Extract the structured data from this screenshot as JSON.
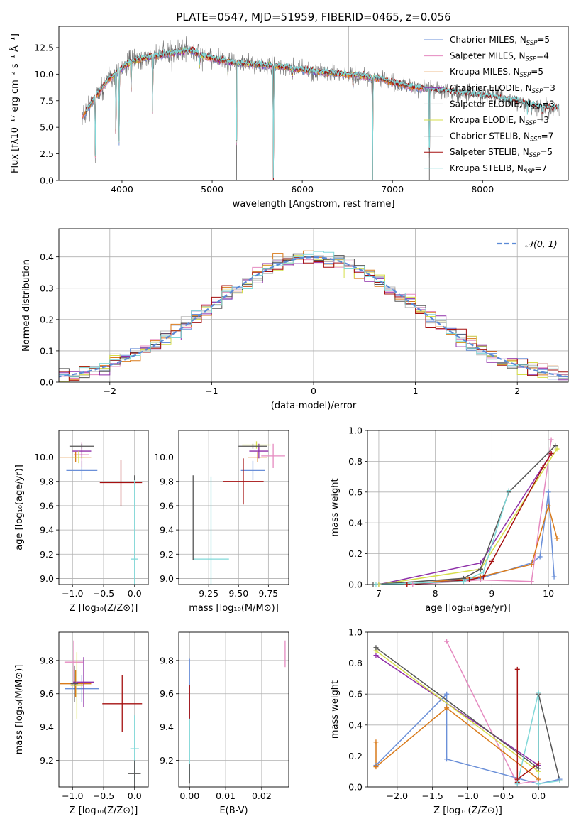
{
  "figure": {
    "title": "PLATE=0547, MJD=51959, FIBERID=0465, z=0.056"
  },
  "colors": {
    "chabrier_miles": "#6a8fd8",
    "salpeter_miles": "#e58ac0",
    "kroupa_miles": "#d97a1a",
    "chabrier_elodie": "#8e2fa8",
    "salpeter_elodie": "#b8b8b8",
    "kroupa_elodie": "#d6de4a",
    "chabrier_stelib": "#555555",
    "salpeter_stelib": "#a51010",
    "kroupa_stelib": "#80d8d8",
    "data": "#707070",
    "grid": "#b0b0b0",
    "normal": "#5b8ad6"
  },
  "chart_data": [
    {
      "id": "spectrum",
      "type": "line",
      "xlabel": "wavelength [Angstrom, rest frame]",
      "ylabel": "Flux [fλ10⁻¹⁷ erg cm⁻² s⁻¹ Å⁻¹]",
      "xlim": [
        3300,
        8950
      ],
      "ylim": [
        0,
        14.5
      ],
      "xticks": [
        "4000",
        "5000",
        "6000",
        "7000",
        "8000"
      ],
      "yticks": [
        "0.0",
        "2.5",
        "5.0",
        "7.5",
        "10.0",
        "12.5"
      ],
      "legend_position": "top-right",
      "legend": [
        {
          "model": "Chabrier MILES",
          "nssp": "5",
          "color": "#6a8fd8"
        },
        {
          "model": "Salpeter MILES",
          "nssp": "4",
          "color": "#e58ac0"
        },
        {
          "model": "Kroupa MILES",
          "nssp": "5",
          "color": "#d97a1a"
        },
        {
          "model": "Chabrier ELODIE",
          "nssp": "3",
          "color": "#8e2fa8"
        },
        {
          "model": "Salpeter ELODIE",
          "nssp": "3",
          "color": "#b8b8b8"
        },
        {
          "model": "Kroupa ELODIE",
          "nssp": "3",
          "color": "#d6de4a"
        },
        {
          "model": "Chabrier STELIB",
          "nssp": "7",
          "color": "#555555"
        },
        {
          "model": "Salpeter STELIB",
          "nssp": "5",
          "color": "#a51010"
        },
        {
          "model": "Kroupa STELIB",
          "nssp": "7",
          "color": "#80d8d8"
        }
      ],
      "continuum": [
        [
          3560,
          6.0
        ],
        [
          3700,
          7.8
        ],
        [
          3850,
          9.5
        ],
        [
          3950,
          10.2
        ],
        [
          4100,
          11.2
        ],
        [
          4300,
          11.6
        ],
        [
          4500,
          11.9
        ],
        [
          4750,
          12.3
        ],
        [
          4900,
          11.7
        ],
        [
          5100,
          11.3
        ],
        [
          5300,
          11.0
        ],
        [
          5500,
          10.9
        ],
        [
          5800,
          10.7
        ],
        [
          6000,
          10.4
        ],
        [
          6300,
          10.1
        ],
        [
          6600,
          9.9
        ],
        [
          6900,
          9.5
        ],
        [
          7100,
          9.0
        ],
        [
          7300,
          8.7
        ],
        [
          7500,
          8.5
        ],
        [
          7800,
          8.2
        ],
        [
          8100,
          7.9
        ],
        [
          8400,
          7.4
        ],
        [
          8700,
          6.8
        ]
      ],
      "absorption_dips": [
        [
          3705,
          1.2
        ],
        [
          3933,
          3.5
        ],
        [
          3968,
          3.6
        ],
        [
          4101,
          8.0
        ],
        [
          4340,
          6.4
        ],
        [
          4861,
          10.6
        ],
        [
          5175,
          9.8
        ],
        [
          5270,
          0.0
        ],
        [
          5680,
          0.0
        ],
        [
          5890,
          9.6
        ],
        [
          6563,
          8.7
        ],
        [
          6780,
          0.0
        ],
        [
          7410,
          0.0
        ],
        [
          8498,
          6.0
        ],
        [
          8542,
          5.8
        ],
        [
          8662,
          6.1
        ]
      ],
      "data_spikes": [
        [
          5270,
          0.0
        ],
        [
          5680,
          0.0
        ],
        [
          6510,
          14.5
        ],
        [
          6780,
          0.0
        ],
        [
          7410,
          0.0
        ]
      ]
    },
    {
      "id": "residuals",
      "type": "area",
      "xlabel": "(data-model)/error",
      "ylabel": "Normed distribution",
      "xlim": [
        -2.5,
        2.5
      ],
      "ylim": [
        0,
        0.49
      ],
      "xticks": [
        "−2",
        "−1",
        "0",
        "1",
        "2"
      ],
      "yticks": [
        "0.0",
        "0.1",
        "0.2",
        "0.3",
        "0.4"
      ],
      "legend": [
        {
          "label": "𝒩(0, 1)",
          "color": "#5b8ad6"
        }
      ],
      "bin_width": 0.1,
      "gaussian": {
        "mean": 0,
        "sigma": 1
      }
    },
    {
      "id": "age_vs_z",
      "type": "scatter",
      "xlabel": "Z [log₁₀(Z/Z⊙)]",
      "ylabel": "age  [log₁₀(age/yr)]",
      "xlim": [
        -1.22,
        0.22
      ],
      "ylim": [
        8.95,
        10.22
      ],
      "xticks": [
        "−1.0",
        "−0.5",
        "0.0"
      ],
      "yticks": [
        "9.0",
        "9.2",
        "9.4",
        "9.6",
        "9.8",
        "10.0"
      ],
      "crosses": [
        {
          "model": "Chabrier MILES",
          "x": -0.85,
          "xerr": 0.25,
          "y": 9.89,
          "yerr": 0.08
        },
        {
          "model": "Salpeter MILES",
          "x": -0.85,
          "xerr": 0.12,
          "y": 10.02,
          "yerr": 0.1
        },
        {
          "model": "Kroupa MILES",
          "x": -0.95,
          "xerr": 0.25,
          "y": 10.0,
          "yerr": 0.04
        },
        {
          "model": "Chabrier ELODIE",
          "x": -0.85,
          "xerr": 0.15,
          "y": 10.05,
          "yerr": 0.06
        },
        {
          "model": "Kroupa ELODIE",
          "x": -0.9,
          "xerr": 0.1,
          "y": 10.0,
          "yerr": 0.05
        },
        {
          "model": "Chabrier STELIB",
          "x": -0.85,
          "xerr": 0.2,
          "y": 10.09,
          "yerr": 0.02
        },
        {
          "model": "Salpeter STELIB",
          "x": -0.22,
          "xerr": 0.34,
          "y": 9.79,
          "yerr": 0.19
        },
        {
          "model": "Kroupa STELIB",
          "x": 0.0,
          "xerr": 0.06,
          "y": 9.16,
          "yerr": 0.68
        },
        {
          "model": "Chabrier STELIB",
          "x": 0.0,
          "xerr": 0.0,
          "y": 9.83,
          "yerr": 0.02
        }
      ]
    },
    {
      "id": "age_vs_mass",
      "type": "scatter",
      "xlabel": "mass [log₁₀(M/M⊙)]",
      "ylabel": "",
      "xlim": [
        9.0,
        9.92
      ],
      "ylim": [
        8.95,
        10.22
      ],
      "xticks": [
        "9.25",
        "9.50",
        "9.75"
      ],
      "yticks": [
        "9.0",
        "9.2",
        "9.4",
        "9.6",
        "9.8",
        "10.0"
      ],
      "crosses": [
        {
          "model": "Chabrier MILES",
          "x": 9.62,
          "xerr": 0.1,
          "y": 9.89,
          "yerr": 0.08
        },
        {
          "model": "Salpeter MILES",
          "x": 9.79,
          "xerr": 0.1,
          "y": 10.01,
          "yerr": 0.1
        },
        {
          "model": "Kroupa MILES",
          "x": 9.66,
          "xerr": 0.08,
          "y": 10.0,
          "yerr": 0.04
        },
        {
          "model": "Chabrier ELODIE",
          "x": 9.67,
          "xerr": 0.08,
          "y": 10.05,
          "yerr": 0.06
        },
        {
          "model": "Kroupa ELODIE",
          "x": 9.65,
          "xerr": 0.12,
          "y": 10.1,
          "yerr": 0.03
        },
        {
          "model": "Chabrier STELIB",
          "x": 9.62,
          "xerr": 0.12,
          "y": 10.09,
          "yerr": 0.02
        },
        {
          "model": "Salpeter STELIB",
          "x": 9.54,
          "xerr": 0.17,
          "y": 9.8,
          "yerr": 0.19
        },
        {
          "model": "Kroupa STELIB",
          "x": 9.27,
          "xerr": 0.15,
          "y": 9.16,
          "yerr": 0.68
        },
        {
          "model": "Chabrier STELIB",
          "x": 9.12,
          "xerr": 0.0,
          "y": 9.5,
          "yerr": 0.35
        }
      ]
    },
    {
      "id": "mass_weight_vs_age",
      "type": "line",
      "xlabel": "age  [log₁₀(age/yr)]",
      "ylabel": "mass weight",
      "xlim": [
        6.8,
        10.35
      ],
      "ylim": [
        0,
        1.0
      ],
      "xticks": [
        "7",
        "8",
        "9",
        "10"
      ],
      "yticks": [
        "0.0",
        "0.2",
        "0.4",
        "0.6",
        "0.8",
        "1.0"
      ],
      "series": [
        {
          "model": "Chabrier MILES",
          "x": [
            7.5,
            8.8,
            9.7,
            9.85,
            10.0,
            10.1
          ],
          "y": [
            0.0,
            0.04,
            0.14,
            0.18,
            0.6,
            0.05
          ]
        },
        {
          "model": "Salpeter MILES",
          "x": [
            7.6,
            8.8,
            9.7,
            10.05
          ],
          "y": [
            0.0,
            0.03,
            0.02,
            0.94
          ]
        },
        {
          "model": "Kroupa MILES",
          "x": [
            7.5,
            8.8,
            9.7,
            10.0,
            10.15
          ],
          "y": [
            0.0,
            0.05,
            0.13,
            0.51,
            0.3
          ]
        },
        {
          "model": "Chabrier ELODIE",
          "x": [
            7.0,
            8.8,
            10.05
          ],
          "y": [
            0.0,
            0.14,
            0.85
          ]
        },
        {
          "model": "Kroupa ELODIE",
          "x": [
            7.0,
            8.8,
            10.15
          ],
          "y": [
            0.0,
            0.1,
            0.88
          ]
        },
        {
          "model": "Chabrier STELIB",
          "x": [
            6.9,
            8.5,
            8.8,
            9.3,
            10.12
          ],
          "y": [
            0.0,
            0.04,
            0.1,
            0.6,
            0.9
          ]
        },
        {
          "model": "Salpeter STELIB",
          "x": [
            7.5,
            8.6,
            8.85,
            9.0,
            9.9,
            10.05
          ],
          "y": [
            0.0,
            0.03,
            0.05,
            0.15,
            0.76,
            0.85
          ]
        },
        {
          "model": "Kroupa STELIB",
          "x": [
            6.95,
            8.5,
            8.85,
            9.3
          ],
          "y": [
            0.0,
            0.02,
            0.08,
            0.61
          ]
        }
      ]
    },
    {
      "id": "mass_vs_z",
      "type": "scatter",
      "xlabel": "Z [log₁₀(Z/Z⊙)]",
      "ylabel": "mass [log₁₀(M/M⊙)]",
      "xlim": [
        -1.22,
        0.22
      ],
      "ylim": [
        9.04,
        9.97
      ],
      "xticks": [
        "−1.0",
        "−0.5",
        "0.0"
      ],
      "yticks": [
        "9.2",
        "9.4",
        "9.6",
        "9.8"
      ],
      "crosses": [
        {
          "model": "Chabrier MILES",
          "x": -0.85,
          "xerr": 0.27,
          "y": 9.63,
          "yerr": 0.08
        },
        {
          "model": "Salpeter MILES",
          "x": -0.98,
          "xerr": 0.15,
          "y": 9.79,
          "yerr": 0.13
        },
        {
          "model": "Kroupa MILES",
          "x": -0.95,
          "xerr": 0.25,
          "y": 9.66,
          "yerr": 0.08
        },
        {
          "model": "Chabrier ELODIE",
          "x": -0.82,
          "xerr": 0.17,
          "y": 9.67,
          "yerr": 0.15
        },
        {
          "model": "Kroupa ELODIE",
          "x": -0.93,
          "xerr": 0.1,
          "y": 9.65,
          "yerr": 0.2
        },
        {
          "model": "Chabrier STELIB",
          "x": -0.97,
          "xerr": 0.06,
          "y": 9.66,
          "yerr": 0.11
        },
        {
          "model": "Salpeter STELIB",
          "x": -0.2,
          "xerr": 0.32,
          "y": 9.54,
          "yerr": 0.17
        },
        {
          "model": "Kroupa STELIB",
          "x": 0.0,
          "xerr": 0.07,
          "y": 9.27,
          "yerr": 0.2
        },
        {
          "model": "Chabrier STELIB",
          "x": 0.0,
          "xerr": 0.1,
          "y": 9.12,
          "yerr": 0.08
        }
      ]
    },
    {
      "id": "mass_vs_ebv",
      "type": "scatter",
      "xlabel": "E(B-V)",
      "ylabel": "",
      "xlim": [
        -0.003,
        0.0275
      ],
      "ylim": [
        9.04,
        9.97
      ],
      "xticks": [
        "0.00",
        "0.01",
        "0.02"
      ],
      "yticks": [
        "9.2",
        "9.4",
        "9.6",
        "9.8"
      ],
      "crosses": [
        {
          "model": "Salpeter MILES",
          "x": 0.0265,
          "xerr": 0.0,
          "y": 9.84,
          "yerr": 0.08
        },
        {
          "model": "Chabrier MILES",
          "x": 0.0,
          "xerr": 0.0,
          "y": 9.63,
          "yerr": 0.18
        },
        {
          "model": "Salpeter STELIB",
          "x": 0.0,
          "xerr": 0.0,
          "y": 9.55,
          "yerr": 0.1
        },
        {
          "model": "Kroupa STELIB",
          "x": 0.0,
          "xerr": 0.0,
          "y": 9.27,
          "yerr": 0.18
        },
        {
          "model": "Chabrier STELIB",
          "x": 0.0,
          "xerr": 0.0,
          "y": 9.12,
          "yerr": 0.06
        }
      ]
    },
    {
      "id": "mass_weight_vs_z",
      "type": "line",
      "xlabel": "Z [log₁₀(Z/Z⊙)]",
      "ylabel": "mass weight",
      "xlim": [
        -2.42,
        0.42
      ],
      "ylim": [
        0,
        1.0
      ],
      "xticks": [
        "−2.0",
        "−1.5",
        "−1.0",
        "−0.5",
        "0.0"
      ],
      "yticks": [
        "0.0",
        "0.2",
        "0.4",
        "0.6",
        "0.8",
        "1.0"
      ],
      "series": [
        {
          "model": "Chabrier MILES",
          "x": [
            -2.3,
            -1.3,
            -1.3,
            0.0,
            0.3
          ],
          "y": [
            0.14,
            0.6,
            0.18,
            0.02,
            0.05
          ]
        },
        {
          "model": "Salpeter MILES",
          "x": [
            -1.3,
            -0.3,
            0.0
          ],
          "y": [
            0.94,
            0.02,
            0.04
          ]
        },
        {
          "model": "Kroupa MILES",
          "x": [
            -2.3,
            -2.3,
            -1.3,
            0.0
          ],
          "y": [
            0.29,
            0.13,
            0.51,
            0.05
          ]
        },
        {
          "model": "Chabrier ELODIE",
          "x": [
            -2.3,
            0.0
          ],
          "y": [
            0.85,
            0.14
          ]
        },
        {
          "model": "Kroupa ELODIE",
          "x": [
            -2.3,
            0.0
          ],
          "y": [
            0.88,
            0.1
          ]
        },
        {
          "model": "Chabrier STELIB",
          "x": [
            -2.3,
            0.0,
            0.0,
            0.3
          ],
          "y": [
            0.9,
            0.12,
            0.6,
            0.04
          ]
        },
        {
          "model": "Salpeter STELIB",
          "x": [
            -0.3,
            -0.3,
            -0.3,
            0.0
          ],
          "y": [
            0.76,
            0.03,
            0.05,
            0.15
          ]
        },
        {
          "model": "Kroupa STELIB",
          "x": [
            -0.3,
            0.0,
            0.0,
            0.3
          ],
          "y": [
            0.02,
            0.61,
            0.02,
            0.04
          ]
        }
      ]
    }
  ]
}
